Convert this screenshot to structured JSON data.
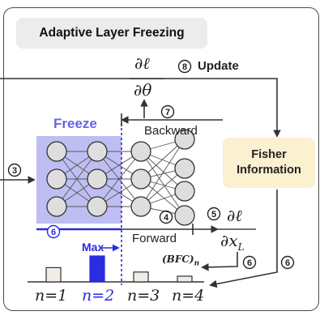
{
  "title": "Adaptive Layer Freezing",
  "freeze_label": "Freeze",
  "fisher": {
    "line1": "Fisher",
    "line2": "Information"
  },
  "labels": {
    "update": "Update",
    "backward": "Backward",
    "forward": "Forward",
    "max": "Max",
    "bfc": "(BFC)",
    "bfc_sub": "n"
  },
  "step_numbers": {
    "update": "8",
    "backward": "7",
    "forward": "4",
    "input": "3",
    "partial": "5",
    "bfc_step": "6",
    "fisher_out": "6",
    "layer_select": "6"
  },
  "math": {
    "d_l": "∂ℓ",
    "d_theta": "∂θ",
    "d_x": "∂x",
    "x_sub": "L"
  },
  "bar_chart": {
    "categories": [
      "n=1",
      "n=2",
      "n=3",
      "n=4"
    ],
    "values": [
      0.55,
      1.0,
      0.38,
      0.22
    ],
    "highlight_index": 1,
    "highlight_color": "#2b2be0",
    "normal_color": "#f1ece6"
  },
  "colors": {
    "accent_blue": "#2b2be0",
    "freeze_blue": "#6565e0",
    "fisher_bg": "#fbf0cf"
  }
}
